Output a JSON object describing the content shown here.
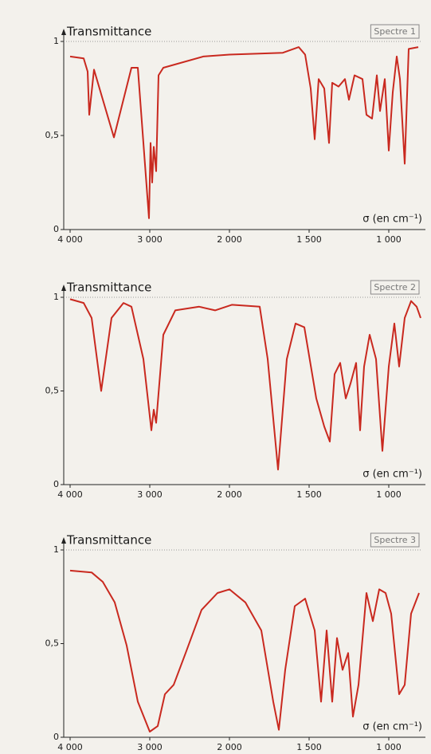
{
  "chart_data": [
    {
      "type": "line",
      "title": "Spectre 1",
      "y_label": "Transmittance",
      "x_label": "σ (en cm⁻¹)",
      "color": "#c9291f",
      "x": [
        4000,
        3830,
        3780,
        3760,
        3700,
        3450,
        3230,
        3150,
        3010,
        2990,
        2970,
        2950,
        2920,
        2890,
        2830,
        2330,
        2000,
        1665,
        1565,
        1525,
        1490,
        1465,
        1440,
        1405,
        1375,
        1355,
        1315,
        1275,
        1250,
        1215,
        1165,
        1140,
        1105,
        1075,
        1055,
        1025,
        1000,
        975,
        950,
        930,
        900,
        875,
        815
      ],
      "values": [
        0.92,
        0.91,
        0.84,
        0.61,
        0.85,
        0.49,
        0.86,
        0.86,
        0.06,
        0.46,
        0.25,
        0.44,
        0.31,
        0.82,
        0.86,
        0.92,
        0.93,
        0.94,
        0.97,
        0.93,
        0.75,
        0.48,
        0.8,
        0.75,
        0.46,
        0.78,
        0.76,
        0.8,
        0.69,
        0.82,
        0.8,
        0.61,
        0.59,
        0.82,
        0.63,
        0.8,
        0.42,
        0.73,
        0.92,
        0.8,
        0.35,
        0.96,
        0.97
      ],
      "xlim": [
        4000,
        800
      ],
      "ylim": [
        0,
        1
      ],
      "xticks": [
        {
          "value": 4000,
          "label": "4 000"
        },
        {
          "value": 3000,
          "label": "3 000"
        },
        {
          "value": 2000,
          "label": "2 000"
        },
        {
          "value": 1500,
          "label": "1 500"
        },
        {
          "value": 1000,
          "label": "1 000"
        }
      ],
      "yticks": [
        0,
        {
          "value": 0.5,
          "label": "0,5"
        },
        1
      ]
    },
    {
      "type": "line",
      "title": "Spectre 2",
      "y_label": "Transmittance",
      "x_label": "σ (en cm⁻¹)",
      "color": "#c9291f",
      "x": [
        4000,
        3830,
        3730,
        3610,
        3480,
        3330,
        3230,
        3080,
        2980,
        2950,
        2920,
        2830,
        2680,
        2380,
        2180,
        1985,
        1810,
        1760,
        1695,
        1640,
        1585,
        1530,
        1455,
        1405,
        1370,
        1340,
        1305,
        1270,
        1240,
        1205,
        1180,
        1155,
        1120,
        1080,
        1040,
        1000,
        965,
        935,
        900,
        860,
        825,
        800
      ],
      "values": [
        0.99,
        0.97,
        0.89,
        0.5,
        0.89,
        0.97,
        0.95,
        0.67,
        0.29,
        0.4,
        0.33,
        0.8,
        0.93,
        0.95,
        0.93,
        0.96,
        0.95,
        0.67,
        0.08,
        0.67,
        0.86,
        0.84,
        0.46,
        0.31,
        0.23,
        0.59,
        0.65,
        0.46,
        0.54,
        0.65,
        0.29,
        0.63,
        0.8,
        0.67,
        0.18,
        0.63,
        0.86,
        0.63,
        0.89,
        0.98,
        0.95,
        0.89
      ],
      "xlim": [
        4000,
        800
      ],
      "ylim": [
        0,
        1
      ],
      "xticks": [
        {
          "value": 4000,
          "label": "4 000"
        },
        {
          "value": 3000,
          "label": "3 000"
        },
        {
          "value": 2000,
          "label": "2 000"
        },
        {
          "value": 1500,
          "label": "1 500"
        },
        {
          "value": 1000,
          "label": "1 000"
        }
      ],
      "yticks": [
        0,
        {
          "value": 0.5,
          "label": "0,5"
        },
        1
      ]
    },
    {
      "type": "line",
      "title": "Spectre 3",
      "y_label": "Transmittance",
      "x_label": "σ (en cm⁻¹)",
      "color": "#c9291f",
      "x": [
        4000,
        3730,
        3590,
        3440,
        3290,
        3150,
        3000,
        2900,
        2810,
        2700,
        2550,
        2350,
        2150,
        2000,
        1900,
        1800,
        1725,
        1690,
        1650,
        1590,
        1525,
        1465,
        1425,
        1390,
        1355,
        1325,
        1290,
        1255,
        1225,
        1190,
        1140,
        1100,
        1060,
        1020,
        985,
        935,
        900,
        860,
        810
      ],
      "values": [
        0.89,
        0.88,
        0.83,
        0.72,
        0.49,
        0.19,
        0.03,
        0.06,
        0.23,
        0.28,
        0.45,
        0.68,
        0.77,
        0.79,
        0.72,
        0.57,
        0.19,
        0.04,
        0.36,
        0.7,
        0.74,
        0.57,
        0.19,
        0.57,
        0.19,
        0.53,
        0.36,
        0.45,
        0.11,
        0.28,
        0.77,
        0.62,
        0.79,
        0.77,
        0.66,
        0.23,
        0.28,
        0.66,
        0.77
      ],
      "xlim": [
        4000,
        800
      ],
      "ylim": [
        0,
        1
      ],
      "xticks": [
        {
          "value": 4000,
          "label": "4 000"
        },
        {
          "value": 3000,
          "label": "3 000"
        },
        {
          "value": 2000,
          "label": "2 000"
        },
        {
          "value": 1500,
          "label": "1 500"
        },
        {
          "value": 1000,
          "label": "1 000"
        }
      ],
      "yticks": [
        0,
        {
          "value": 0.5,
          "label": "0,5"
        },
        1
      ]
    }
  ]
}
